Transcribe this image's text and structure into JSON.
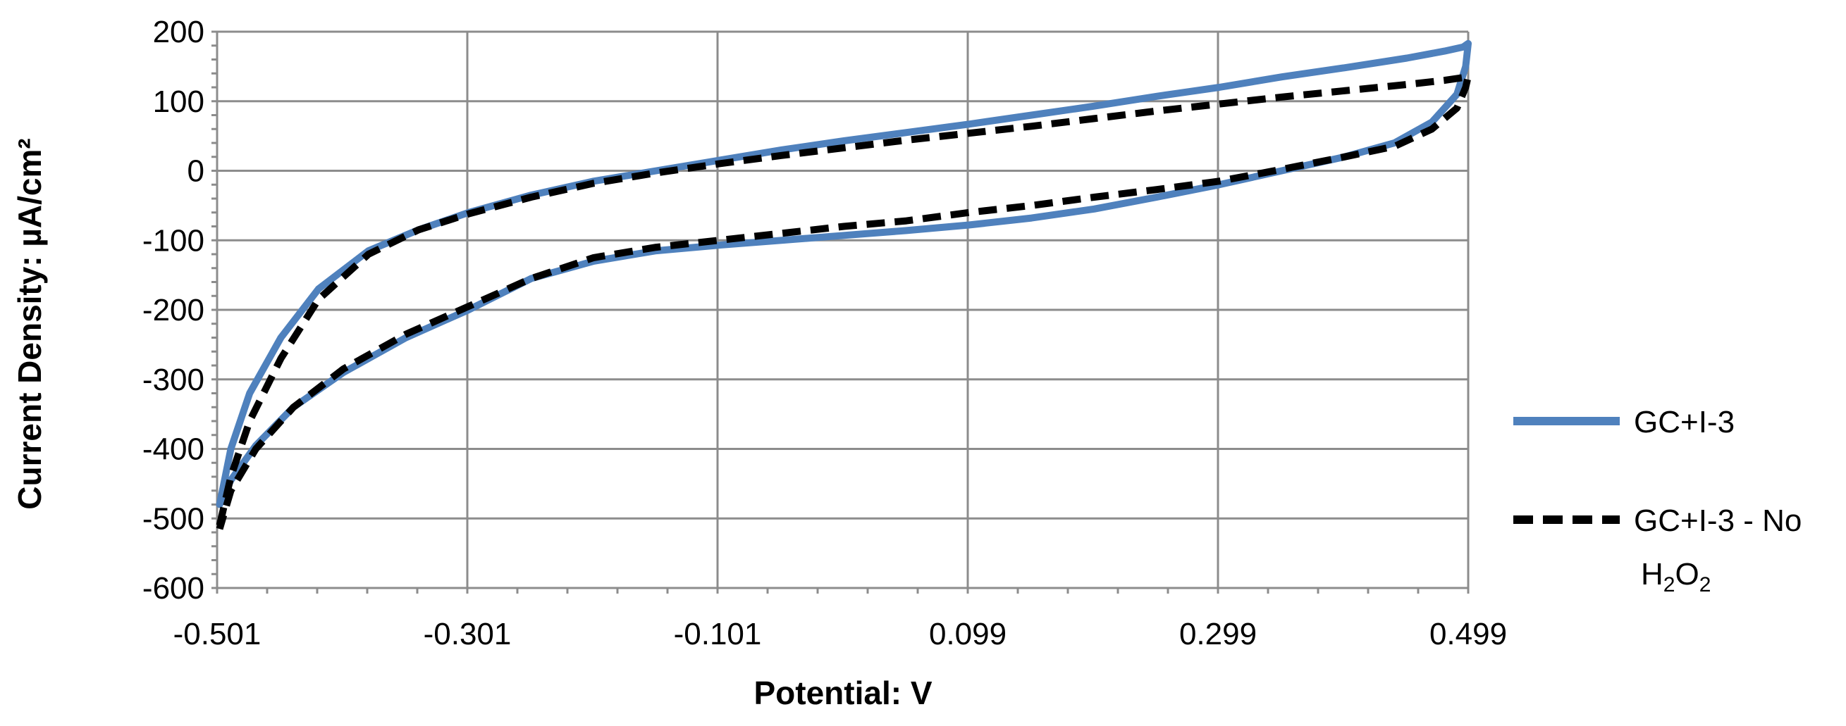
{
  "chart_data": {
    "type": "line",
    "title": "",
    "xlabel": "Potential: V",
    "ylabel": "Current Density: µA/cm²",
    "xlim": [
      -0.501,
      0.499
    ],
    "ylim": [
      -600,
      200
    ],
    "x_ticks": [
      "-0.501",
      "-0.301",
      "-0.101",
      "0.099",
      "0.299",
      "0.499"
    ],
    "y_ticks": [
      "200",
      "100",
      "0",
      "-100",
      "-200",
      "-300",
      "-400",
      "-500",
      "-600"
    ],
    "grid": true,
    "legend_position": "right",
    "series": [
      {
        "name": "GC+I-3",
        "color": "#4F81BD",
        "style": "solid",
        "x": [
          -0.499,
          -0.49,
          -0.475,
          -0.45,
          -0.42,
          -0.38,
          -0.34,
          -0.3,
          -0.25,
          -0.2,
          -0.15,
          -0.1,
          -0.05,
          0.0,
          0.05,
          0.1,
          0.15,
          0.2,
          0.25,
          0.3,
          0.35,
          0.4,
          0.45,
          0.48,
          0.495,
          0.499,
          0.497,
          0.49,
          0.47,
          0.44,
          0.4,
          0.35,
          0.3,
          0.25,
          0.2,
          0.15,
          0.1,
          0.05,
          0.0,
          -0.05,
          -0.1,
          -0.15,
          -0.2,
          -0.25,
          -0.3,
          -0.35,
          -0.4,
          -0.44,
          -0.47,
          -0.49,
          -0.499
        ],
        "y": [
          -480,
          -400,
          -320,
          -240,
          -170,
          -115,
          -85,
          -60,
          -35,
          -15,
          0,
          15,
          30,
          43,
          55,
          67,
          80,
          93,
          107,
          120,
          135,
          148,
          162,
          172,
          178,
          183,
          150,
          110,
          70,
          40,
          20,
          0,
          -20,
          -38,
          -55,
          -68,
          -78,
          -86,
          -93,
          -100,
          -107,
          -115,
          -130,
          -155,
          -200,
          -240,
          -290,
          -340,
          -395,
          -445,
          -480
        ]
      },
      {
        "name": "GC+I-3 - No H2O2",
        "color": "#000000",
        "style": "dashed",
        "x": [
          -0.499,
          -0.49,
          -0.475,
          -0.45,
          -0.42,
          -0.38,
          -0.34,
          -0.3,
          -0.25,
          -0.2,
          -0.15,
          -0.1,
          -0.05,
          0.0,
          0.05,
          0.1,
          0.15,
          0.2,
          0.25,
          0.3,
          0.35,
          0.4,
          0.45,
          0.48,
          0.495,
          0.499,
          0.497,
          0.49,
          0.47,
          0.44,
          0.4,
          0.35,
          0.3,
          0.25,
          0.2,
          0.15,
          0.1,
          0.05,
          0.0,
          -0.05,
          -0.1,
          -0.15,
          -0.2,
          -0.25,
          -0.3,
          -0.35,
          -0.4,
          -0.44,
          -0.47,
          -0.49,
          -0.499
        ],
        "y": [
          -510,
          -440,
          -360,
          -270,
          -185,
          -120,
          -85,
          -62,
          -38,
          -18,
          -3,
          10,
          22,
          33,
          44,
          54,
          64,
          75,
          86,
          96,
          106,
          115,
          124,
          130,
          134,
          136,
          120,
          90,
          60,
          35,
          20,
          2,
          -15,
          -27,
          -38,
          -50,
          -60,
          -72,
          -80,
          -90,
          -100,
          -110,
          -125,
          -155,
          -195,
          -235,
          -285,
          -340,
          -400,
          -460,
          -515
        ]
      }
    ]
  }
}
